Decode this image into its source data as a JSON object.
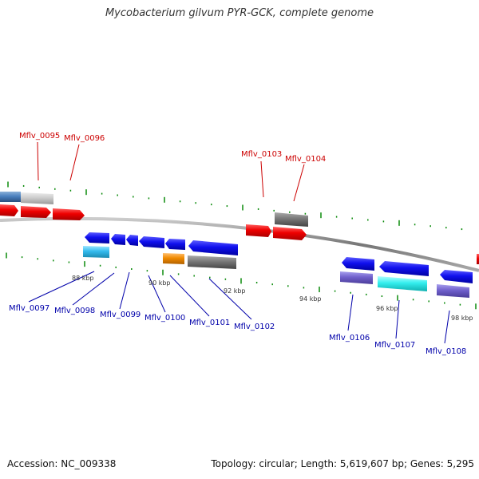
{
  "title": "Mycobacterium gilvum PYR-GCK, complete genome",
  "footer": {
    "accession": "Accession: NC_009338",
    "summary": "Topology: circular; Length: 5,619,607 bp; Genes: 5,295"
  },
  "kbp_marks": [
    "88 kbp",
    "90 kbp",
    "92 kbp",
    "94 kbp",
    "96 kbp",
    "98 kbp"
  ],
  "gene_labels": {
    "top": [
      "Mflv_0095",
      "Mflv_0096",
      "Mflv_0103",
      "Mflv_0104"
    ],
    "bottom": [
      "Mflv_0097",
      "Mflv_0098",
      "Mflv_0099",
      "Mflv_0100",
      "Mflv_0101",
      "Mflv_0102",
      "Mflv_0106",
      "Mflv_0107",
      "Mflv_0108"
    ]
  },
  "colors": {
    "forward_label": "#cc0000",
    "reverse_label": "#0000aa",
    "forward_gene": "#ee0000",
    "reverse_gene": "#1010ee",
    "backbone": "#888888",
    "tick": "#0a8a0a"
  }
}
